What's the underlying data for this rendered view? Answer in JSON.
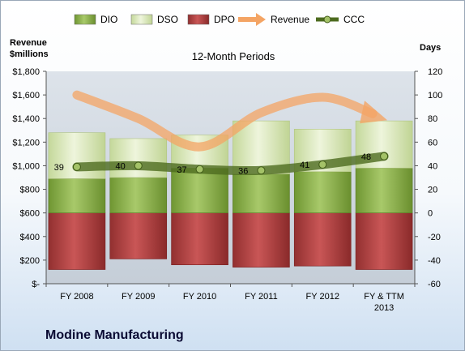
{
  "company": "Modine Manufacturing",
  "chart_data": {
    "type": "bar",
    "subtitle": "12-Month Periods",
    "ylabel_left": "Revenue\n$millions",
    "ylabel_right": "Days",
    "categories": [
      "FY 2008",
      "FY 2009",
      "FY 2010",
      "FY 2011",
      "FY 2012",
      "FY & TTM 2013"
    ],
    "left_axis": {
      "min": 0,
      "max": 1800,
      "step": 200,
      "tick_labels": [
        "$-",
        "$200",
        "$400",
        "$600",
        "$800",
        "$1,000",
        "$1,200",
        "$1,400",
        "$1,600",
        "$1,800"
      ]
    },
    "right_axis": {
      "min": -60,
      "max": 120,
      "step": 20,
      "tick_labels": [
        "-60",
        "-40",
        "-20",
        "0",
        "20",
        "40",
        "60",
        "80",
        "100",
        "120"
      ]
    },
    "series": [
      {
        "name": "DIO",
        "kind": "stacked-bar",
        "axis": "right",
        "color": "#8db04a",
        "values": [
          29,
          30,
          38,
          33,
          35,
          38
        ]
      },
      {
        "name": "DSO",
        "kind": "stacked-bar",
        "axis": "right",
        "color": "#d9e8b8",
        "values": [
          39,
          33,
          28,
          45,
          36,
          40
        ]
      },
      {
        "name": "DPO",
        "kind": "negative-bar",
        "axis": "right",
        "color": "#b03a3a",
        "values": [
          -48,
          -39,
          -44,
          -46,
          -45,
          -48
        ]
      },
      {
        "name": "Revenue",
        "kind": "line",
        "axis": "left",
        "color": "#f4a464",
        "values": [
          1600,
          1400,
          1160,
          1450,
          1580,
          1400
        ]
      },
      {
        "name": "CCC",
        "kind": "line",
        "axis": "right",
        "color": "#5f7a2c",
        "values": [
          39,
          40,
          37,
          36,
          41,
          48
        ],
        "labels": [
          "39",
          "40",
          "37",
          "36",
          "41",
          "48"
        ]
      }
    ],
    "legend_position": "top",
    "grid": false
  }
}
